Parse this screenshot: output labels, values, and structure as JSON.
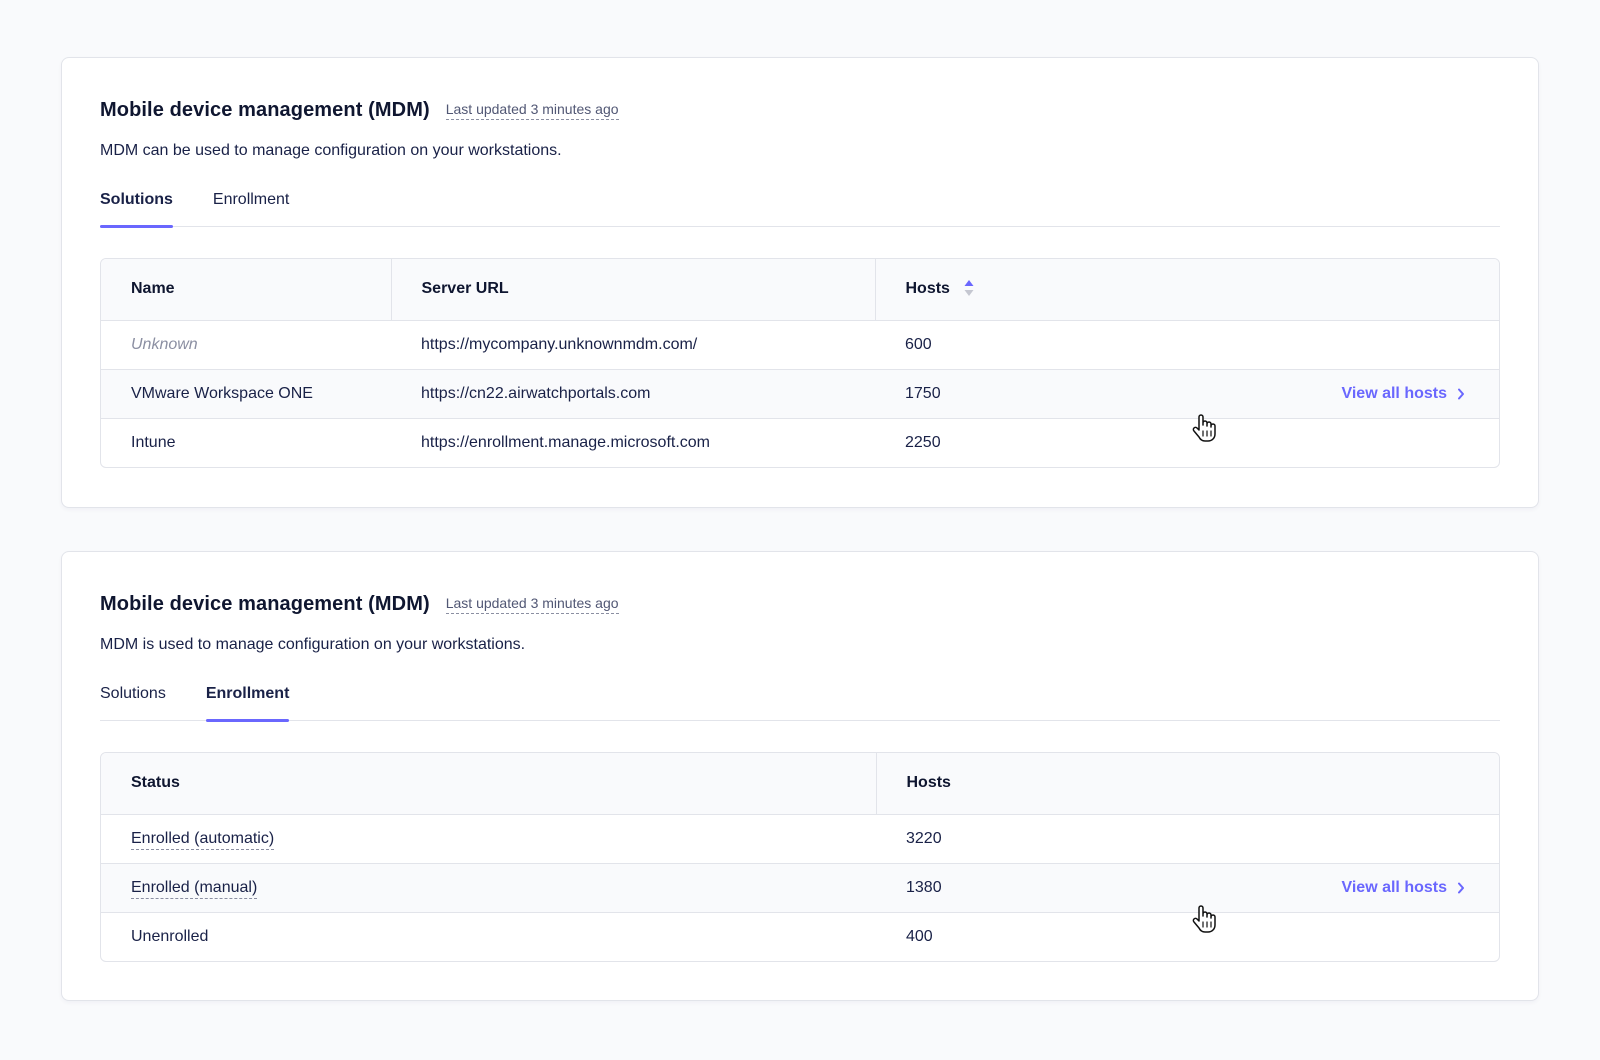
{
  "cards": [
    {
      "title": "Mobile device management (MDM)",
      "last_updated": "Last updated 3 minutes ago",
      "description": "MDM can be used to manage configuration on your workstations.",
      "tabs": [
        {
          "label": "Solutions",
          "active": true
        },
        {
          "label": "Enrollment",
          "active": false
        }
      ],
      "table": {
        "headers": [
          "Name",
          "Server URL",
          "Hosts"
        ],
        "sort_column": "Hosts",
        "rows": [
          {
            "name": "Unknown",
            "server_url": "https://mycompany.unknownmdm.com/",
            "hosts": "600"
          },
          {
            "name": "VMware Workspace ONE",
            "server_url": "https://cn22.airwatchportals.com",
            "hosts": "1750"
          },
          {
            "name": "Intune",
            "server_url": "https://enrollment.manage.microsoft.com",
            "hosts": "2250"
          }
        ],
        "view_all_label": "View all hosts"
      }
    },
    {
      "title": "Mobile device management (MDM)",
      "last_updated": "Last updated 3 minutes ago",
      "description": "MDM is used to manage configuration on your workstations.",
      "tabs": [
        {
          "label": "Solutions",
          "active": false
        },
        {
          "label": "Enrollment",
          "active": true
        }
      ],
      "table": {
        "headers": [
          "Status",
          "Hosts"
        ],
        "rows": [
          {
            "status": "Enrolled (automatic)",
            "hosts": "3220"
          },
          {
            "status": "Enrolled (manual)",
            "hosts": "1380"
          },
          {
            "status": "Unenrolled",
            "hosts": "400"
          }
        ],
        "view_all_label": "View all hosts"
      }
    }
  ],
  "colors": {
    "accent": "#6a67fe",
    "text": "#192147",
    "muted": "#8b8fa2",
    "border": "#e2e4ea",
    "background": "#f9fafc"
  },
  "icons": {
    "sort": "sort-arrows-icon",
    "chevron": "chevron-right-icon",
    "cursor": "hand-pointer-cursor"
  }
}
